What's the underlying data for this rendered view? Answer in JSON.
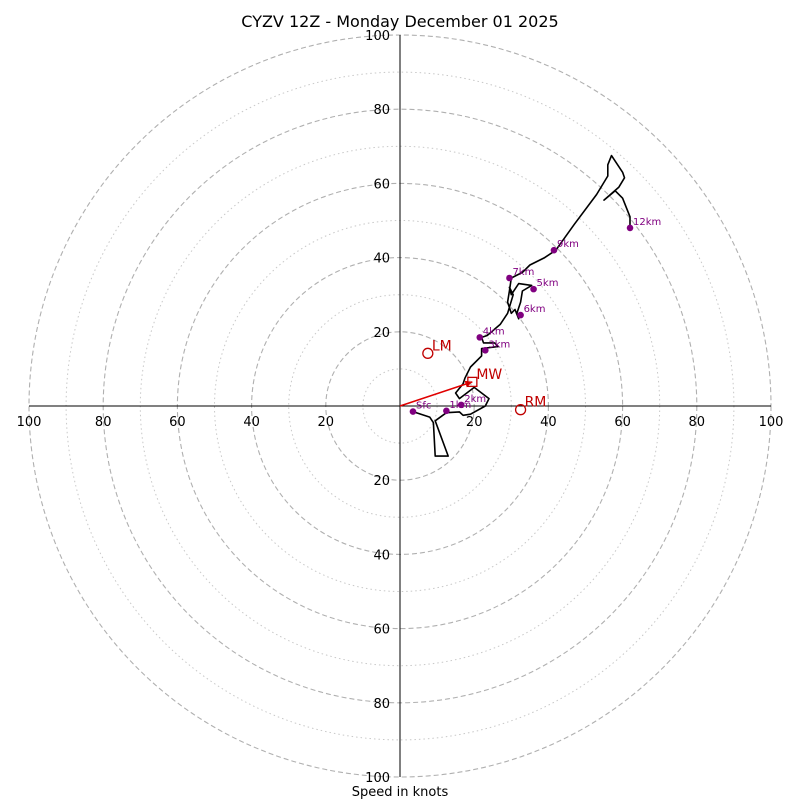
{
  "chart_data": {
    "type": "hodograph",
    "title": "CYZV 12Z - Monday December 01 2025",
    "xlabel": "Speed in knots",
    "units": "knots",
    "xlim": [
      -100,
      100
    ],
    "ylim": [
      -100,
      100
    ],
    "rings_major": [
      20,
      40,
      60,
      80,
      100
    ],
    "rings_minor": [
      10,
      30,
      50,
      70,
      90
    ],
    "tick_values": [
      20,
      40,
      60,
      80,
      100
    ],
    "tick_labels": {
      "right": [
        "20",
        "40",
        "60",
        "80",
        "100"
      ],
      "left": [
        "20",
        "40",
        "60",
        "80",
        "100"
      ],
      "top": [
        "20",
        "40",
        "60",
        "80",
        "100"
      ],
      "bottom": [
        "20",
        "40",
        "60",
        "80",
        "100"
      ]
    },
    "colors": {
      "trace": "#000000",
      "markers": "#800080",
      "storm": "#c00000",
      "mean_wind_vector": "#e00000",
      "ring_major": "#b0b0b0",
      "ring_minor": "#c8c8c8"
    },
    "trace": [
      [
        3.5,
        -1.5
      ],
      [
        8,
        -3
      ],
      [
        9,
        -4.5
      ],
      [
        9.5,
        -13.5
      ],
      [
        13,
        -13.5
      ],
      [
        9.5,
        -4
      ],
      [
        12.5,
        -1.8
      ],
      [
        16,
        -1.6
      ],
      [
        17,
        -2.5
      ],
      [
        19,
        -2.2
      ],
      [
        23,
        0
      ],
      [
        24,
        2
      ],
      [
        20,
        5
      ],
      [
        16,
        2
      ],
      [
        15,
        3.5
      ],
      [
        17,
        6
      ],
      [
        17.5,
        7.5
      ],
      [
        19,
        10.5
      ],
      [
        22,
        13.5
      ],
      [
        22,
        15.5
      ],
      [
        26.5,
        16
      ],
      [
        25.5,
        17
      ],
      [
        22.5,
        17
      ],
      [
        22,
        18.5
      ],
      [
        23.5,
        19
      ],
      [
        27,
        22
      ],
      [
        29,
        25
      ],
      [
        30.5,
        30
      ],
      [
        29.5,
        32
      ],
      [
        30,
        30
      ],
      [
        32,
        33
      ],
      [
        35.5,
        32.5
      ],
      [
        33,
        31
      ],
      [
        32.5,
        28
      ],
      [
        31.5,
        25
      ],
      [
        32,
        23.5
      ],
      [
        31,
        26
      ],
      [
        30,
        25
      ],
      [
        29,
        28
      ],
      [
        29.5,
        31
      ],
      [
        30,
        34.5
      ],
      [
        33,
        36
      ],
      [
        35,
        38
      ],
      [
        39,
        40
      ],
      [
        42,
        42
      ],
      [
        47,
        49
      ],
      [
        53,
        57
      ],
      [
        56,
        62
      ],
      [
        56,
        65
      ],
      [
        57,
        67.5
      ],
      [
        60,
        63
      ],
      [
        60.5,
        61.5
      ],
      [
        59,
        59
      ],
      [
        55,
        55.5
      ],
      [
        58,
        58
      ],
      [
        60,
        56
      ],
      [
        62,
        51
      ],
      [
        62,
        48
      ]
    ],
    "height_markers": [
      {
        "label": "Sfc",
        "u": 3.5,
        "v": -1.5
      },
      {
        "label": "1km",
        "u": 12.5,
        "v": -1.3
      },
      {
        "label": "2km",
        "u": 16.5,
        "v": 0.3
      },
      {
        "label": "3km",
        "u": 23,
        "v": 15
      },
      {
        "label": "4km",
        "u": 21.5,
        "v": 18.5
      },
      {
        "label": "5km",
        "u": 36,
        "v": 31.5
      },
      {
        "label": "6km",
        "u": 32.5,
        "v": 24.5
      },
      {
        "label": "7km",
        "u": 29.5,
        "v": 34.5
      },
      {
        "label": "9km",
        "u": 41.5,
        "v": 42
      },
      {
        "label": "12km",
        "u": 62,
        "v": 48
      }
    ],
    "storm_motion": [
      {
        "label": "LM",
        "u": 7.5,
        "v": 14.2,
        "shape": "circle"
      },
      {
        "label": "MW",
        "u": 19.5,
        "v": 6.5,
        "shape": "square"
      },
      {
        "label": "RM",
        "u": 32.5,
        "v": -1.0,
        "shape": "circle"
      }
    ],
    "mean_wind_vector": {
      "from": [
        0,
        0
      ],
      "to": [
        19.5,
        6.5
      ]
    }
  }
}
